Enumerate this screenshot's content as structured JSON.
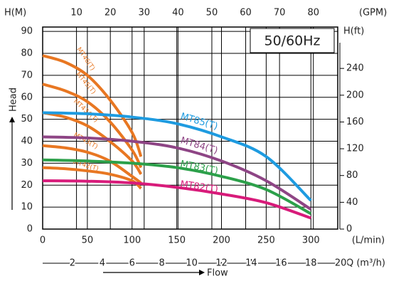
{
  "chart_data": {
    "type": "line",
    "y_label": "H(M)",
    "y2_label": "H(ft)",
    "x_label": "(L/min)",
    "x2_label": "(GPM)",
    "x3_label": "Q (m³/h)",
    "frequency": "50/60Hz",
    "head_label": "Head",
    "flow_label": "Flow",
    "xlim": [
      0,
      330
    ],
    "xticks": [
      0,
      50,
      100,
      150,
      200,
      250,
      300
    ],
    "x2lim": [
      0,
      87.2
    ],
    "x2ticks": [
      10,
      20,
      30,
      40,
      50,
      60,
      70,
      80
    ],
    "x3lim": [
      0,
      19.8
    ],
    "x3ticks": [
      2,
      4,
      6,
      8,
      10,
      12,
      14,
      16,
      18,
      20
    ],
    "ylim": [
      0,
      92
    ],
    "yticks": [
      0,
      10,
      20,
      30,
      40,
      50,
      60,
      70,
      80,
      90
    ],
    "y2lim": [
      0,
      301.8
    ],
    "y2ticks": [
      0,
      40,
      80,
      120,
      160,
      200,
      240
    ],
    "grid": true,
    "series": [
      {
        "name": "MT46(T)",
        "color": "#e87722",
        "x": [
          0,
          25,
          50,
          75,
          100,
          110
        ],
        "values": [
          79,
          76,
          70,
          59,
          44,
          33
        ]
      },
      {
        "name": "MT45(T)",
        "color": "#e87722",
        "x": [
          0,
          25,
          50,
          75,
          100,
          110
        ],
        "values": [
          66,
          63,
          58,
          49,
          36,
          28
        ]
      },
      {
        "name": "MT434(T)",
        "color": "#e87722",
        "x": [
          0,
          25,
          50,
          75,
          100,
          110
        ],
        "values": [
          53,
          51,
          47,
          40,
          31,
          25
        ]
      },
      {
        "name": "MT43(T)",
        "color": "#e87722",
        "x": [
          0,
          25,
          50,
          75,
          100,
          110
        ],
        "values": [
          38,
          37,
          35,
          31,
          24,
          21
        ]
      },
      {
        "name": "MT42(T)",
        "color": "#e87722",
        "x": [
          0,
          25,
          50,
          75,
          100,
          110
        ],
        "values": [
          28,
          27.5,
          26.5,
          25,
          22,
          18.5
        ]
      },
      {
        "name": "MT85(T)",
        "color": "#1e9be0",
        "x": [
          0,
          50,
          100,
          150,
          200,
          250,
          300
        ],
        "values": [
          53,
          52.5,
          51,
          48,
          42,
          33,
          13
        ]
      },
      {
        "name": "MT84(T)",
        "color": "#8e4585",
        "x": [
          0,
          50,
          100,
          150,
          200,
          250,
          300
        ],
        "values": [
          42,
          41.5,
          40,
          37,
          31,
          22,
          9
        ]
      },
      {
        "name": "MT83(T)",
        "color": "#2ca04a",
        "x": [
          0,
          50,
          100,
          150,
          200,
          250,
          300
        ],
        "values": [
          31.5,
          31,
          30,
          28,
          24,
          18,
          7
        ]
      },
      {
        "name": "MT82(T)",
        "color": "#d81b7a",
        "x": [
          0,
          50,
          100,
          150,
          200,
          250,
          300
        ],
        "values": [
          22,
          21.8,
          21,
          19,
          16,
          12,
          5
        ]
      }
    ]
  }
}
